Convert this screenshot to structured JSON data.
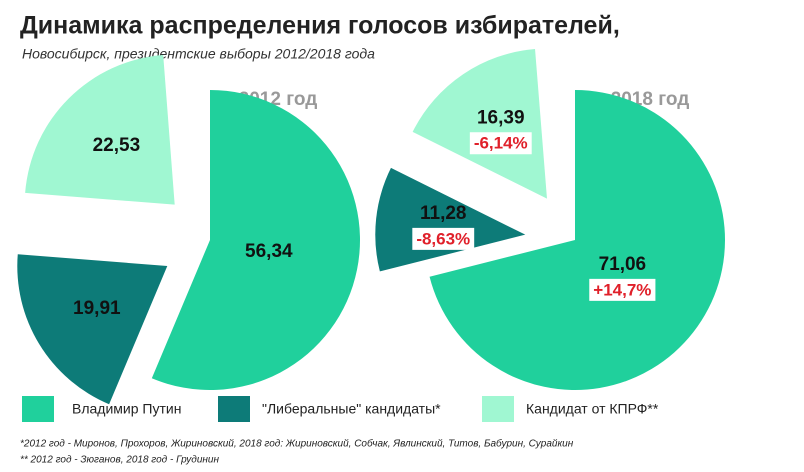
{
  "title": "Динамика распределения голосов избирателей,",
  "subtitle": "Новосибирск, президентские выборы 2012/2018 года",
  "footnotes": [
    "*2012 год - Миронов, Прохоров, Жириновский, 2018 год: Жириновский, Собчак, Явлинский, Титов, Бабурин, Сурайкин",
    "** 2012 год - Зюганов, 2018 год - Грудинин"
  ],
  "chart_data": {
    "type": "pie",
    "categories": [
      "Владимир Путин",
      "\"Либеральные\" кандидаты*",
      "Кандидат от КПРФ**"
    ],
    "colors": [
      "#20d09c",
      "#0d7b78",
      "#a0f7d2"
    ],
    "series": [
      {
        "name": "2012 год",
        "values": [
          56.34,
          19.91,
          22.53
        ],
        "value_labels": [
          "56,34",
          "19,91",
          "22,53"
        ]
      },
      {
        "name": "2018 год",
        "values": [
          71.06,
          11.28,
          16.39
        ],
        "value_labels": [
          "71,06",
          "11,28",
          "16,39"
        ],
        "change_labels": [
          "+14,7%",
          "-8,63%",
          "-6,14%"
        ]
      }
    ]
  }
}
